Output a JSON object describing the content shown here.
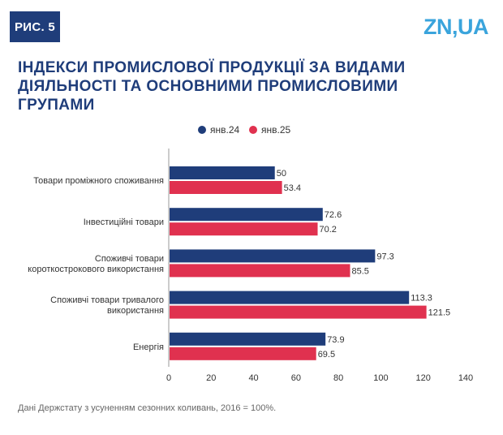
{
  "header": {
    "badge": "РИС. 5",
    "logo": "ZN,UA",
    "title": "ІНДЕКСИ ПРОМИСЛОВОЇ ПРОДУКЦІЇ ЗА ВИДАМИ\nДІЯЛЬНОСТІ ТА ОСНОВНИМИ ПРОМИСЛОВИМИ\nГРУПАМИ"
  },
  "footnote": "Дані Держстату з усуненням сезонних коливань, 2016 = 100%.",
  "colors": {
    "series_1": "#1f3d7a",
    "series_2": "#e0314f",
    "badge_bg": "#1f3d7a",
    "logo": "#3aa4dc",
    "title": "#1f3d7a"
  },
  "chart_data": {
    "type": "bar",
    "orientation": "horizontal",
    "categories": [
      [
        "Товари проміжного споживання"
      ],
      [
        "Інвестиційні товари"
      ],
      [
        "Споживчі товари",
        "короткострокового використання"
      ],
      [
        "Споживчі товари тривалого",
        "використання"
      ],
      [
        "Енергія"
      ]
    ],
    "series": [
      {
        "name": "янв.24",
        "values": [
          50,
          72.6,
          97.3,
          113.3,
          73.9
        ],
        "labels": [
          "50",
          "72.6",
          "97.3",
          "113.3",
          "73.9"
        ]
      },
      {
        "name": "янв.25",
        "values": [
          53.4,
          70.2,
          85.5,
          121.5,
          69.5
        ],
        "labels": [
          "53.4",
          "70.2",
          "85.5",
          "121.5",
          "69.5"
        ]
      }
    ],
    "xlim": [
      0,
      140
    ],
    "xticks": [
      0,
      20,
      40,
      60,
      80,
      100,
      120,
      140
    ],
    "legend": "top-center",
    "grid": false
  }
}
